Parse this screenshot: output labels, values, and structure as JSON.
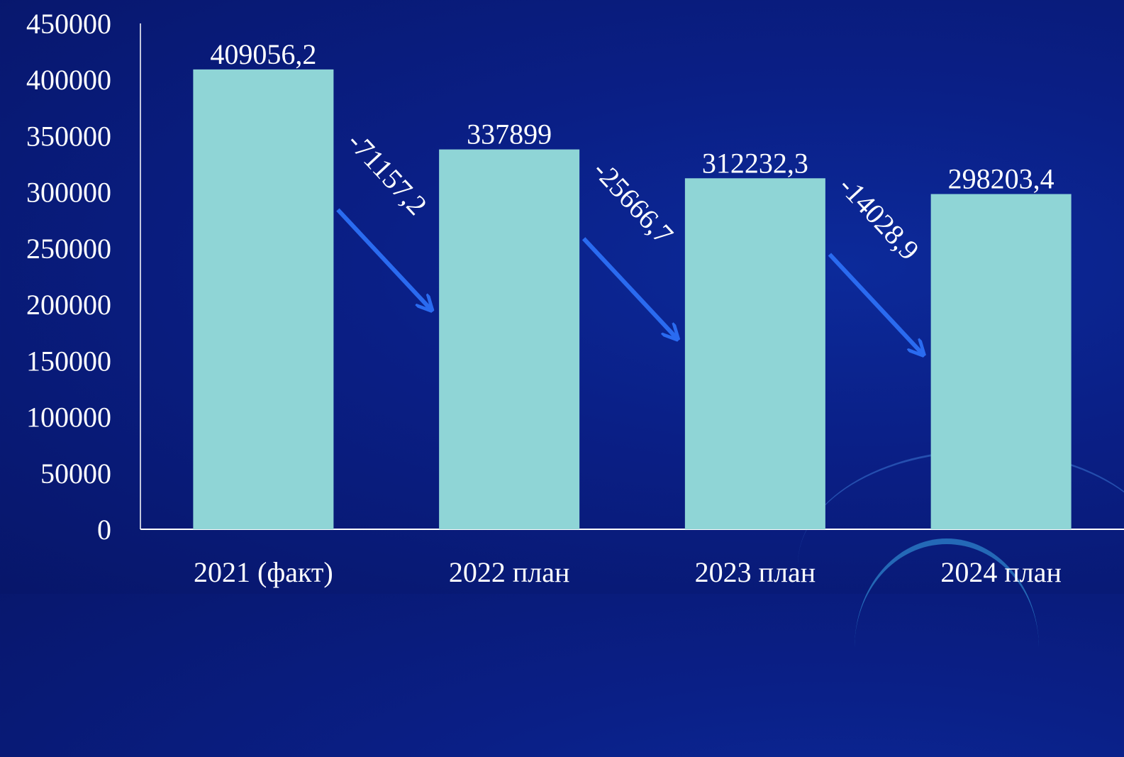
{
  "chart_data": {
    "type": "bar",
    "categories": [
      "2021 (факт)",
      "2022 план",
      "2023 план",
      "2024 план"
    ],
    "values": [
      409056.2,
      337899,
      312232.3,
      298203.4
    ],
    "value_labels": [
      "409056,2",
      "337899",
      "312232,3",
      "298203,4"
    ],
    "yticks": [
      "0",
      "50000",
      "100000",
      "150000",
      "200000",
      "250000",
      "300000",
      "350000",
      "400000",
      "450000"
    ],
    "ylim": [
      0,
      450000
    ],
    "changes": [
      "-71157,2",
      "-25666,7",
      "-14028,9"
    ],
    "colors": {
      "bar": "#8fd5d6",
      "arrow": "#2a6bf0",
      "text": "#ffffff",
      "axis": "#ffffff"
    }
  }
}
